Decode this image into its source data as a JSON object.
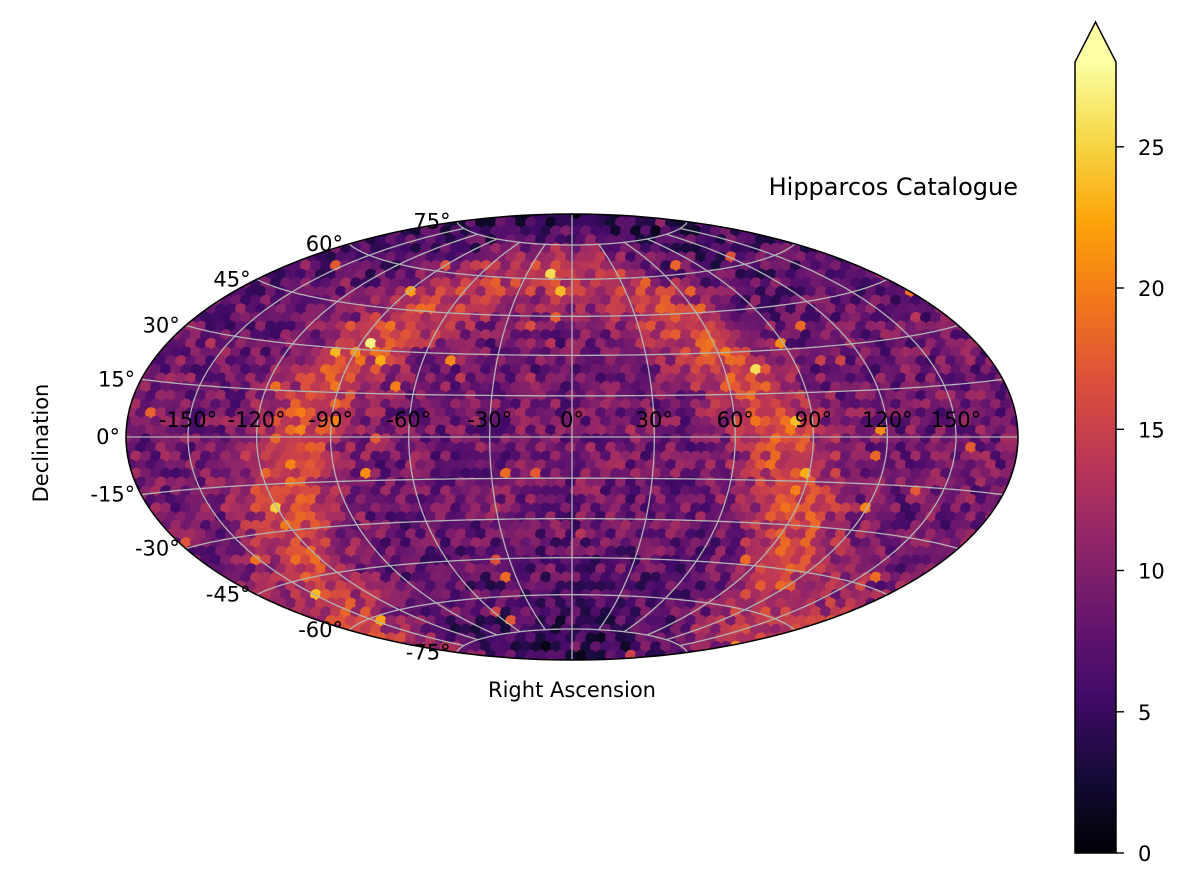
{
  "chart_data": {
    "type": "heatmap",
    "title": "Hipparcos Catalogue",
    "xlabel": "Right Ascension",
    "ylabel": "Declination",
    "projection": "hammer",
    "grid": true,
    "x_ticks": [
      "-150°",
      "-120°",
      "-90°",
      "-60°",
      "-30°",
      "0°",
      "30°",
      "60°",
      "90°",
      "120°",
      "150°"
    ],
    "y_ticks": [
      "75°",
      "60°",
      "45°",
      "30°",
      "15°",
      "0°",
      "-15°",
      "-30°",
      "-45°",
      "-60°",
      "-75°"
    ],
    "colormap": "inferno",
    "colorbar": {
      "ticks": [
        "0",
        "5",
        "10",
        "15",
        "20",
        "25"
      ],
      "range": [
        0,
        28
      ],
      "extend": "max"
    },
    "density_summary": {
      "pole_bins": 2,
      "typical_bins": 9,
      "galactic_plane_peak": 26
    }
  }
}
